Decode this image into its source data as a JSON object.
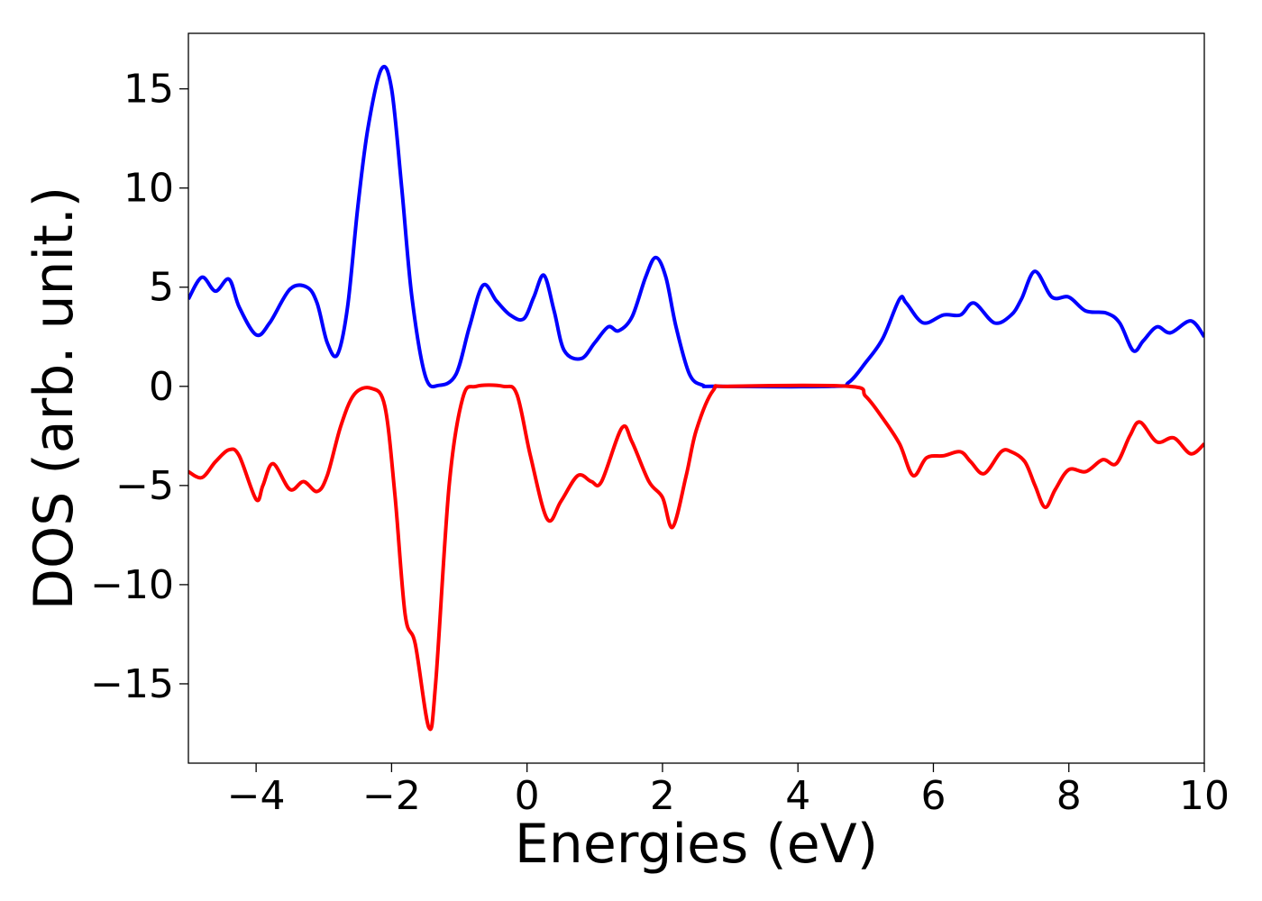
{
  "chart_data": {
    "type": "line",
    "title": "",
    "xlabel": "Energies (eV)",
    "ylabel": "DOS (arb. unit.)",
    "xlim": [
      -5,
      10
    ],
    "ylim": [
      -19,
      17.8
    ],
    "grid": false,
    "legend": "none",
    "x_ticks": [
      {
        "value": -4,
        "label": "−4"
      },
      {
        "value": -2,
        "label": "−2"
      },
      {
        "value": 0,
        "label": "0"
      },
      {
        "value": 2,
        "label": "2"
      },
      {
        "value": 4,
        "label": "4"
      },
      {
        "value": 6,
        "label": "6"
      },
      {
        "value": 8,
        "label": "8"
      },
      {
        "value": 10,
        "label": "10"
      }
    ],
    "y_ticks": [
      {
        "value": -15,
        "label": "−15"
      },
      {
        "value": -10,
        "label": "−10"
      },
      {
        "value": -5,
        "label": "−5"
      },
      {
        "value": 0,
        "label": "0"
      },
      {
        "value": 5,
        "label": "5"
      },
      {
        "value": 10,
        "label": "10"
      },
      {
        "value": 15,
        "label": "15"
      }
    ],
    "series": [
      {
        "color": "#0000ff",
        "points": [
          [
            -5.0,
            4.4
          ],
          [
            -4.8,
            5.5
          ],
          [
            -4.6,
            4.8
          ],
          [
            -4.4,
            5.4
          ],
          [
            -4.25,
            4.0
          ],
          [
            -4.0,
            2.6
          ],
          [
            -3.8,
            3.2
          ],
          [
            -3.5,
            4.9
          ],
          [
            -3.25,
            5.0
          ],
          [
            -3.1,
            4.2
          ],
          [
            -2.95,
            2.2
          ],
          [
            -2.8,
            1.6
          ],
          [
            -2.65,
            4.0
          ],
          [
            -2.5,
            9.0
          ],
          [
            -2.35,
            13.0
          ],
          [
            -2.15,
            16.0
          ],
          [
            -2.0,
            15.0
          ],
          [
            -1.85,
            10.0
          ],
          [
            -1.7,
            4.5
          ],
          [
            -1.5,
            0.5
          ],
          [
            -1.3,
            0.05
          ],
          [
            -1.05,
            0.6
          ],
          [
            -0.85,
            3.0
          ],
          [
            -0.65,
            5.1
          ],
          [
            -0.45,
            4.3
          ],
          [
            -0.25,
            3.6
          ],
          [
            -0.05,
            3.4
          ],
          [
            0.1,
            4.5
          ],
          [
            0.25,
            5.6
          ],
          [
            0.4,
            3.8
          ],
          [
            0.55,
            1.8
          ],
          [
            0.8,
            1.4
          ],
          [
            1.0,
            2.2
          ],
          [
            1.2,
            3.0
          ],
          [
            1.35,
            2.8
          ],
          [
            1.55,
            3.5
          ],
          [
            1.75,
            5.5
          ],
          [
            1.9,
            6.5
          ],
          [
            2.05,
            5.5
          ],
          [
            2.2,
            3.0
          ],
          [
            2.4,
            0.6
          ],
          [
            2.6,
            0.05
          ],
          [
            2.8,
            0.0
          ],
          [
            4.5,
            0.0
          ],
          [
            4.75,
            0.2
          ],
          [
            5.0,
            1.2
          ],
          [
            5.25,
            2.4
          ],
          [
            5.5,
            4.4
          ],
          [
            5.6,
            4.2
          ],
          [
            5.85,
            3.2
          ],
          [
            6.15,
            3.6
          ],
          [
            6.4,
            3.6
          ],
          [
            6.6,
            4.2
          ],
          [
            6.9,
            3.2
          ],
          [
            7.15,
            3.6
          ],
          [
            7.3,
            4.4
          ],
          [
            7.5,
            5.8
          ],
          [
            7.75,
            4.5
          ],
          [
            8.0,
            4.5
          ],
          [
            8.25,
            3.8
          ],
          [
            8.55,
            3.7
          ],
          [
            8.75,
            3.2
          ],
          [
            8.95,
            1.8
          ],
          [
            9.1,
            2.3
          ],
          [
            9.3,
            3.0
          ],
          [
            9.5,
            2.7
          ],
          [
            9.8,
            3.3
          ],
          [
            10.0,
            2.5
          ]
        ]
      },
      {
        "color": "#ff0000",
        "points": [
          [
            -5.0,
            -4.3
          ],
          [
            -4.8,
            -4.6
          ],
          [
            -4.6,
            -3.8
          ],
          [
            -4.4,
            -3.2
          ],
          [
            -4.25,
            -3.5
          ],
          [
            -4.0,
            -5.7
          ],
          [
            -3.9,
            -5.0
          ],
          [
            -3.75,
            -3.9
          ],
          [
            -3.5,
            -5.2
          ],
          [
            -3.3,
            -4.8
          ],
          [
            -3.1,
            -5.3
          ],
          [
            -2.95,
            -4.5
          ],
          [
            -2.75,
            -2.0
          ],
          [
            -2.55,
            -0.4
          ],
          [
            -2.3,
            -0.1
          ],
          [
            -2.1,
            -1.0
          ],
          [
            -1.95,
            -5.5
          ],
          [
            -1.8,
            -11.5
          ],
          [
            -1.65,
            -13.0
          ],
          [
            -1.45,
            -17.2
          ],
          [
            -1.35,
            -15.0
          ],
          [
            -1.15,
            -5.0
          ],
          [
            -0.95,
            -0.6
          ],
          [
            -0.75,
            0.0
          ],
          [
            -0.35,
            0.0
          ],
          [
            -0.15,
            -0.4
          ],
          [
            0.05,
            -3.5
          ],
          [
            0.3,
            -6.7
          ],
          [
            0.5,
            -5.8
          ],
          [
            0.75,
            -4.5
          ],
          [
            0.95,
            -4.8
          ],
          [
            1.1,
            -4.8
          ],
          [
            1.4,
            -2.1
          ],
          [
            1.55,
            -2.8
          ],
          [
            1.8,
            -4.8
          ],
          [
            2.0,
            -5.6
          ],
          [
            2.15,
            -7.1
          ],
          [
            2.35,
            -4.5
          ],
          [
            2.5,
            -2.2
          ],
          [
            2.75,
            -0.2
          ],
          [
            3.0,
            0.0
          ],
          [
            4.75,
            0.0
          ],
          [
            5.0,
            -0.5
          ],
          [
            5.25,
            -1.6
          ],
          [
            5.5,
            -2.9
          ],
          [
            5.7,
            -4.5
          ],
          [
            5.9,
            -3.6
          ],
          [
            6.15,
            -3.5
          ],
          [
            6.4,
            -3.3
          ],
          [
            6.55,
            -3.8
          ],
          [
            6.75,
            -4.4
          ],
          [
            7.0,
            -3.3
          ],
          [
            7.15,
            -3.3
          ],
          [
            7.35,
            -3.8
          ],
          [
            7.5,
            -5.0
          ],
          [
            7.65,
            -6.1
          ],
          [
            7.8,
            -5.2
          ],
          [
            8.0,
            -4.2
          ],
          [
            8.25,
            -4.3
          ],
          [
            8.5,
            -3.7
          ],
          [
            8.7,
            -3.9
          ],
          [
            8.9,
            -2.5
          ],
          [
            9.05,
            -1.8
          ],
          [
            9.3,
            -2.8
          ],
          [
            9.55,
            -2.6
          ],
          [
            9.8,
            -3.4
          ],
          [
            10.0,
            -2.9
          ]
        ]
      }
    ]
  }
}
